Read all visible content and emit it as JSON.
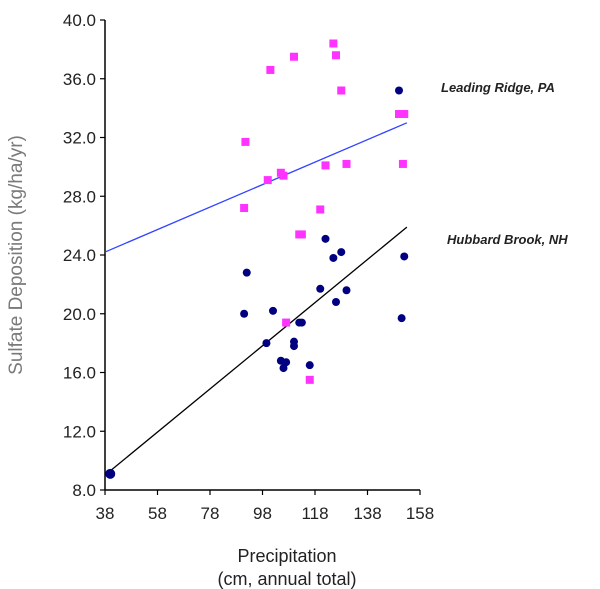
{
  "chart_data": {
    "type": "scatter",
    "xlabel_lines": [
      "Precipitation",
      "(cm, annual total)"
    ],
    "ylabel": "Sulfate Deposition (kg/ha/yr)",
    "xlim": [
      38,
      160
    ],
    "ylim": [
      8,
      40
    ],
    "x_ticks": [
      "38",
      "58",
      "78",
      "98",
      "118",
      "138",
      "158"
    ],
    "y_ticks": [
      "8.0",
      "12.0",
      "16.0",
      "20.0",
      "24.0",
      "28.0",
      "32.0",
      "36.0",
      "40.0"
    ],
    "grid": false,
    "series": [
      {
        "name": "Leading Ridge, PA",
        "color": "#ff33ff",
        "marker": "square",
        "trend_color": "#3344ff",
        "trend": [
          [
            38,
            24.2
          ],
          [
            153,
            33.0
          ]
        ],
        "points": [
          [
            91.5,
            31.7
          ],
          [
            91,
            27.2
          ],
          [
            101,
            36.6
          ],
          [
            100,
            29.1
          ],
          [
            105,
            29.6
          ],
          [
            106,
            29.4
          ],
          [
            110,
            37.5
          ],
          [
            112,
            25.4
          ],
          [
            113,
            25.4
          ],
          [
            120,
            27.1
          ],
          [
            122,
            30.1
          ],
          [
            125,
            38.4
          ],
          [
            126,
            37.6
          ],
          [
            128,
            35.2
          ],
          [
            130,
            30.2
          ],
          [
            150,
            33.6
          ],
          [
            152,
            33.6
          ],
          [
            151.5,
            30.2
          ],
          [
            107,
            19.4
          ],
          [
            116,
            15.5
          ]
        ]
      },
      {
        "name": "Hubbard Brook, NH",
        "color": "#000080",
        "marker": "circle",
        "trend_color": "#000000",
        "trend": [
          [
            40,
            9.3
          ],
          [
            153,
            25.9
          ]
        ],
        "points": [
          [
            40,
            9.1
          ],
          [
            91,
            20.0
          ],
          [
            92,
            22.8
          ],
          [
            99.5,
            18.0
          ],
          [
            102,
            20.2
          ],
          [
            105,
            16.8
          ],
          [
            106,
            16.3
          ],
          [
            107,
            16.7
          ],
          [
            110,
            18.1
          ],
          [
            110,
            17.8
          ],
          [
            112,
            19.4
          ],
          [
            113,
            19.4
          ],
          [
            116,
            16.5
          ],
          [
            120,
            21.7
          ],
          [
            122,
            25.1
          ],
          [
            125,
            23.8
          ],
          [
            126,
            20.8
          ],
          [
            128,
            24.2
          ],
          [
            130,
            21.6
          ],
          [
            150,
            35.2
          ],
          [
            152,
            23.9
          ],
          [
            151,
            19.7
          ]
        ]
      }
    ]
  }
}
